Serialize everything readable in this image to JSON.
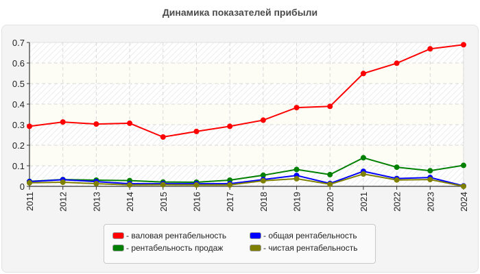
{
  "chart_data": {
    "type": "line",
    "title": "Динамика показателей прибыли",
    "xlabel": "",
    "ylabel": "",
    "x": [
      "2011",
      "2012",
      "2013",
      "2014",
      "2015",
      "2016",
      "2017",
      "2018",
      "2019",
      "2020",
      "2021",
      "2022",
      "2023",
      "2024"
    ],
    "ylim": [
      0,
      0.7
    ],
    "yticks": [
      "0",
      "0.1",
      "0.2",
      "0.3",
      "0.4",
      "0.5",
      "0.6",
      "0.7"
    ],
    "grid": true,
    "legend_position": "bottom",
    "series": [
      {
        "name": "- валовая рентабельность",
        "color": "#ff0000",
        "values": [
          0.292,
          0.313,
          0.303,
          0.307,
          0.24,
          0.267,
          0.292,
          0.322,
          0.383,
          0.389,
          0.549,
          0.599,
          0.669,
          0.689
        ]
      },
      {
        "name": "- рентабельность продаж",
        "color": "#008000",
        "values": [
          0.024,
          0.033,
          0.03,
          0.028,
          0.021,
          0.02,
          0.03,
          0.054,
          0.082,
          0.057,
          0.139,
          0.093,
          0.076,
          0.102
        ]
      },
      {
        "name": "- общая рентабельность",
        "color": "#0000ff",
        "values": [
          0.023,
          0.032,
          0.023,
          0.013,
          0.013,
          0.013,
          0.013,
          0.033,
          0.053,
          0.014,
          0.073,
          0.038,
          0.043,
          0.002
        ]
      },
      {
        "name": "- чистая рентабельность",
        "color": "#808000",
        "values": [
          0.017,
          0.02,
          0.013,
          0.007,
          0.008,
          0.007,
          0.007,
          0.027,
          0.037,
          0.01,
          0.06,
          0.031,
          0.033,
          0.0
        ]
      }
    ]
  },
  "legend": {
    "items": [
      {
        "label": "- валовая рентабельность",
        "color": "#ff0000"
      },
      {
        "label": "- общая рентабельность",
        "color": "#0000ff"
      },
      {
        "label": "- рентабельность продаж",
        "color": "#008000"
      },
      {
        "label": "- чистая рентабельность",
        "color": "#808000"
      }
    ]
  }
}
